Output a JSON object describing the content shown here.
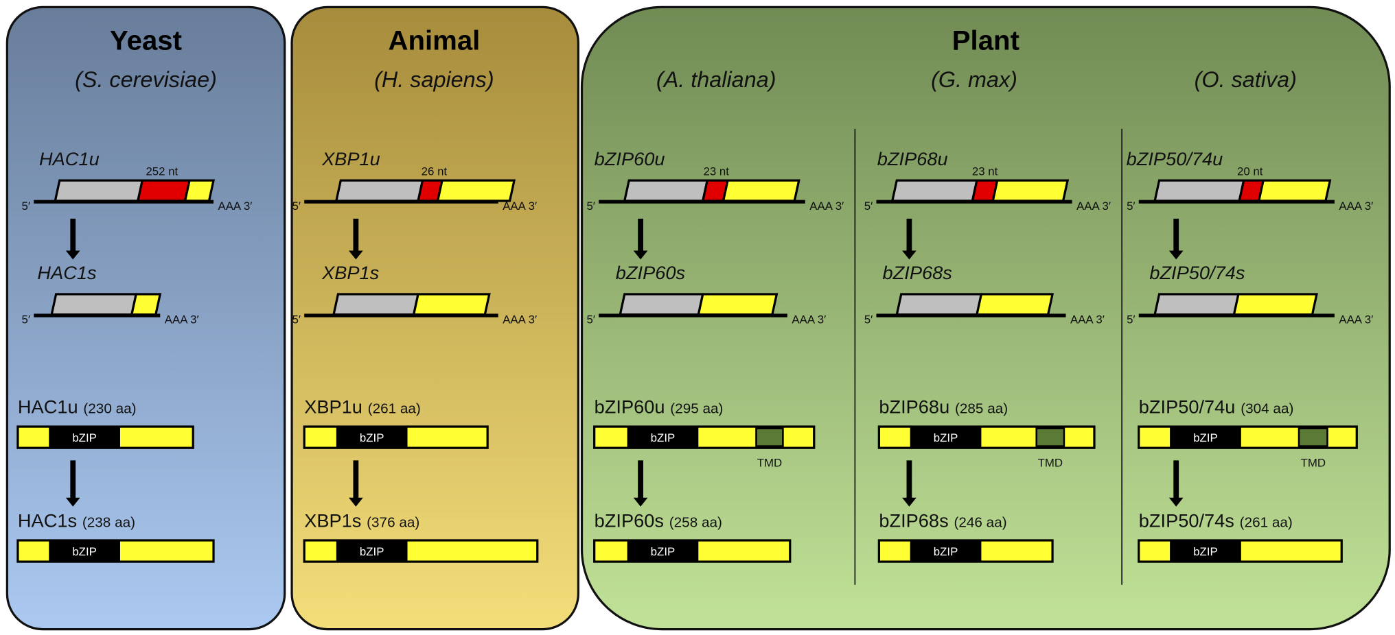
{
  "panels": [
    {
      "title": "Yeast"
    },
    {
      "title": "Animal"
    },
    {
      "title": "Plant"
    }
  ],
  "columns": [
    {
      "species": "(S. cerevisiae)",
      "mrna_u": "HAC1u",
      "intron": "252 nt",
      "mrna_s": "HAC1s",
      "protein_u": "HAC1u",
      "protein_u_len": "(230 aa)",
      "protein_s": "HAC1s",
      "protein_s_len": "(238 aa)"
    },
    {
      "species": "(H. sapiens)",
      "mrna_u": "XBP1u",
      "intron": "26 nt",
      "mrna_s": "XBP1s",
      "protein_u": "XBP1u",
      "protein_u_len": "(261 aa)",
      "protein_s": "XBP1s",
      "protein_s_len": "(376 aa)"
    },
    {
      "species": "(A. thaliana)",
      "mrna_u": "bZIP60u",
      "intron": "23 nt",
      "mrna_s": "bZIP60s",
      "protein_u": "bZIP60u",
      "protein_u_len": "(295 aa)",
      "protein_s": "bZIP60s",
      "protein_s_len": "(258 aa)"
    },
    {
      "species": "(G. max)",
      "mrna_u": "bZIP68u",
      "intron": "23 nt",
      "mrna_s": "bZIP68s",
      "protein_u": "bZIP68u",
      "protein_u_len": "(285 aa)",
      "protein_s": "bZIP68s",
      "protein_s_len": "(246 aa)"
    },
    {
      "species": "(O. sativa)",
      "mrna_u": "bZIP50/74u",
      "intron": "20 nt",
      "mrna_s": "bZIP50/74s",
      "protein_u": "bZIP50/74u",
      "protein_u_len": "(304 aa)",
      "protein_s": "bZIP50/74s",
      "protein_s_len": "(261 aa)"
    }
  ],
  "labels": {
    "five_prime": "5′",
    "three_prime": "AAA 3′",
    "domain": "bZIP",
    "tmd": "TMD"
  },
  "colors": {
    "yeast_top": "#687d9a",
    "yeast_bottom": "#abc9f1",
    "animal_top": "#a68c3c",
    "animal_bottom": "#f4de7a",
    "plant_top": "#718b54",
    "plant_bottom": "#c1e298",
    "exon_5": "#bfbfbf",
    "intron": "#e00000",
    "exon_3": "#ffff33",
    "bzip": "#000000",
    "tmd": "#5b7a36"
  }
}
